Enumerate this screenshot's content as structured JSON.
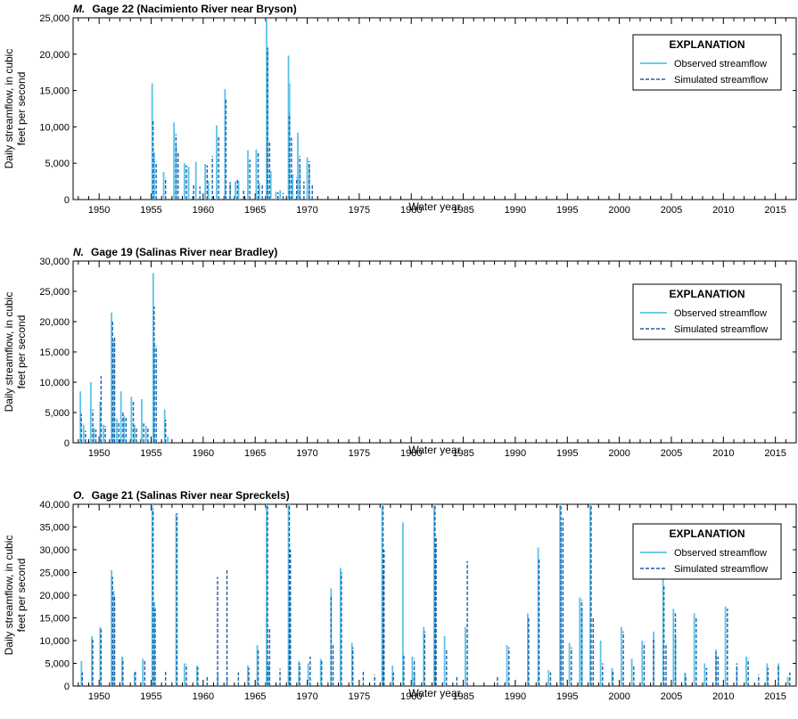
{
  "colors": {
    "observed": "#5BC2E7",
    "simulated": "#1F5FA8",
    "frame": "#000000"
  },
  "chart_data": [
    {
      "type": "line",
      "panel_letter": "M.",
      "title": "Gage 22 (Nacimiento River near Bryson)",
      "xlabel": "Water year",
      "ylabel": [
        "Daily streamflow, in cubic",
        "feet per second"
      ],
      "xlim": [
        1947.5,
        2017
      ],
      "ylim": [
        0,
        25000
      ],
      "xticks": [
        1950,
        1955,
        1960,
        1965,
        1970,
        1975,
        1980,
        1985,
        1990,
        1995,
        2000,
        2005,
        2010,
        2015
      ],
      "yticks": [
        0,
        5000,
        10000,
        15000,
        20000,
        25000
      ],
      "ytick_labels": [
        "0",
        "5,000",
        "10,000",
        "15,000",
        "20,000",
        "25,000"
      ],
      "legend": {
        "title": "EXPLANATION",
        "placement": "top-right",
        "observed": "Observed streamflow",
        "simulated": "Simulated streamflow"
      },
      "series": [
        {
          "name": "Observed streamflow",
          "style": "solid",
          "x": [
            1955.1,
            1955.3,
            1956.2,
            1957.2,
            1957.4,
            1958.2,
            1958.6,
            1959.3,
            1960.2,
            1960.5,
            1961.3,
            1962.1,
            1962.6,
            1963.1,
            1963.4,
            1964.3,
            1965.1,
            1965.4,
            1966.1,
            1966.2,
            1966.5,
            1967.0,
            1967.4,
            1968.2,
            1968.3,
            1968.6,
            1969.1,
            1969.3,
            1970.0,
            1970.2
          ],
          "y": [
            16000,
            6500,
            3800,
            10600,
            7500,
            5000,
            4500,
            5200,
            4900,
            2600,
            10200,
            15200,
            2200,
            2500,
            2600,
            6800,
            6900,
            2300,
            24800,
            21000,
            3900,
            1100,
            1300,
            19800,
            16000,
            3500,
            9200,
            4600,
            5800,
            4800
          ]
        },
        {
          "name": "Simulated streamflow",
          "style": "dashed",
          "x": [
            1955.1,
            1955.4,
            1956.3,
            1957.3,
            1957.5,
            1958.3,
            1959.0,
            1959.6,
            1960.3,
            1960.8,
            1961.4,
            1962.1,
            1962.5,
            1963.2,
            1963.8,
            1964.4,
            1965.2,
            1965.6,
            1966.1,
            1966.3,
            1967.1,
            1967.6,
            1968.2,
            1968.4,
            1968.9,
            1969.2,
            1969.6,
            1970.1,
            1970.4
          ],
          "y": [
            11000,
            5200,
            3000,
            9000,
            6500,
            4700,
            2000,
            1800,
            4700,
            6000,
            8800,
            13800,
            2400,
            2800,
            1500,
            5500,
            6500,
            2000,
            20800,
            8000,
            1000,
            900,
            11800,
            8500,
            3000,
            6000,
            2500,
            5300,
            2000
          ]
        }
      ]
    },
    {
      "type": "line",
      "panel_letter": "N.",
      "title": "Gage 19 (Salinas River near Bradley)",
      "xlabel": "Water year",
      "ylabel": [
        "Daily streamflow, in cubic",
        "feet per second"
      ],
      "xlim": [
        1947.5,
        2017
      ],
      "ylim": [
        0,
        30000
      ],
      "xticks": [
        1950,
        1955,
        1960,
        1965,
        1970,
        1975,
        1980,
        1985,
        1990,
        1995,
        2000,
        2005,
        2010,
        2015
      ],
      "yticks": [
        0,
        5000,
        10000,
        15000,
        20000,
        25000,
        30000
      ],
      "ytick_labels": [
        "0",
        "5,000",
        "10,000",
        "15,000",
        "20,000",
        "25,000",
        "30,000"
      ],
      "legend": {
        "title": "EXPLANATION",
        "placement": "top-right",
        "observed": "Observed streamflow",
        "simulated": "Simulated streamflow"
      },
      "series": [
        {
          "name": "Observed streamflow",
          "style": "solid",
          "x": [
            1948.2,
            1948.5,
            1949.2,
            1949.5,
            1950.1,
            1950.4,
            1951.2,
            1951.4,
            1951.7,
            1952.1,
            1952.4,
            1953.1,
            1953.4,
            1954.1,
            1954.5,
            1955.2,
            1955.3,
            1956.3,
            1956.6
          ],
          "y": [
            8500,
            3000,
            10000,
            2500,
            6800,
            3000,
            21500,
            17000,
            4000,
            8500,
            4500,
            7600,
            3000,
            7200,
            2800,
            28000,
            16600,
            5500,
            1000
          ]
        },
        {
          "name": "Simulated streamflow",
          "style": "dashed",
          "x": [
            1948.2,
            1948.6,
            1949.3,
            1949.6,
            1950.1,
            1950.5,
            1951.2,
            1951.4,
            1951.8,
            1952.2,
            1952.5,
            1953.2,
            1953.5,
            1954.2,
            1954.6,
            1955.2,
            1955.4,
            1956.3
          ],
          "y": [
            4800,
            2000,
            5500,
            2200,
            11000,
            2800,
            20000,
            17500,
            3500,
            5200,
            4200,
            7000,
            2600,
            3200,
            2400,
            22500,
            16000,
            3800
          ]
        }
      ]
    },
    {
      "type": "line",
      "panel_letter": "O.",
      "title": "Gage 21 (Salinas River near Spreckels)",
      "xlabel": "Water year",
      "ylabel": [
        "Daily streamflow, in cubic",
        "feet per second"
      ],
      "xlim": [
        1947.5,
        2017
      ],
      "ylim": [
        0,
        40000
      ],
      "xticks": [
        1950,
        1955,
        1960,
        1965,
        1970,
        1975,
        1980,
        1985,
        1990,
        1995,
        2000,
        2005,
        2010,
        2015
      ],
      "yticks": [
        0,
        5000,
        10000,
        15000,
        20000,
        25000,
        30000,
        35000,
        40000
      ],
      "ytick_labels": [
        "0",
        "5,000",
        "10,000",
        "15,000",
        "20,000",
        "25,000",
        "30,000",
        "35,000",
        "40,000"
      ],
      "legend": {
        "title": "EXPLANATION",
        "placement": "top-right",
        "observed": "Observed streamflow",
        "simulated": "Simulated streamflow"
      },
      "series": [
        {
          "name": "Observed streamflow",
          "style": "solid",
          "x": [
            1948.3,
            1949.3,
            1950.1,
            1951.2,
            1951.4,
            1952.2,
            1953.4,
            1954.2,
            1955.1,
            1955.3,
            1957.4,
            1958.2,
            1959.4,
            1961.4,
            1962.3,
            1964.3,
            1965.2,
            1966.1,
            1966.3,
            1968.2,
            1968.3,
            1969.2,
            1970.1,
            1971.3,
            1972.3,
            1973.2,
            1974.3,
            1977.2,
            1977.3,
            1978.2,
            1979.2,
            1980.1,
            1980.3,
            1981.2,
            1982.2,
            1982.3,
            1983.2,
            1985.2,
            1989.2,
            1991.2,
            1992.2,
            1993.2,
            1994.3,
            1994.4,
            1995.2,
            1996.2,
            1996.4,
            1997.2,
            1998.2,
            1999.3,
            2000.2,
            2001.2,
            2002.2,
            2003.3,
            2004.2,
            2005.2,
            2005.4,
            2006.3,
            2007.2,
            2008.2,
            2009.3,
            2010.2,
            2011.3,
            2012.2,
            2014.2,
            2015.3,
            2016.2
          ],
          "y": [
            5500,
            11000,
            13000,
            25500,
            21000,
            6500,
            3000,
            6000,
            40000,
            18500,
            38000,
            5000,
            4500,
            2500,
            2000,
            4500,
            9000,
            40000,
            5000,
            40000,
            21000,
            5500,
            5000,
            6000,
            21500,
            26000,
            9500,
            40000,
            25000,
            4500,
            36000,
            6500,
            3000,
            13000,
            40000,
            31000,
            11000,
            13000,
            9000,
            16000,
            30500,
            3500,
            40000,
            36000,
            9500,
            19500,
            17000,
            40000,
            10000,
            4000,
            13000,
            6000,
            10000,
            12000,
            23500,
            17000,
            11000,
            3000,
            16000,
            5000,
            8000,
            17500,
            4000,
            6500,
            5000,
            5000,
            2000
          ]
        },
        {
          "name": "Simulated streamflow",
          "style": "dashed",
          "x": [
            1948.3,
            1949.3,
            1950.1,
            1951.2,
            1951.4,
            1952.2,
            1953.4,
            1954.3,
            1955.1,
            1955.3,
            1956.3,
            1957.4,
            1958.3,
            1959.4,
            1960.3,
            1961.3,
            1962.2,
            1963.3,
            1964.3,
            1965.2,
            1966.1,
            1966.3,
            1967.3,
            1968.2,
            1968.3,
            1969.2,
            1970.2,
            1971.3,
            1972.2,
            1972.4,
            1973.2,
            1974.3,
            1975.3,
            1976.4,
            1977.2,
            1977.3,
            1978.2,
            1979.2,
            1980.2,
            1981.2,
            1982.2,
            1982.3,
            1983.3,
            1984.3,
            1985.3,
            1988.2,
            1989.3,
            1991.2,
            1992.2,
            1993.3,
            1994.3,
            1994.5,
            1995.3,
            1996.3,
            1997.2,
            1997.4,
            1998.3,
            1999.3,
            2000.3,
            2001.3,
            2002.3,
            2003.2,
            2004.2,
            2004.4,
            2005.3,
            2006.3,
            2007.3,
            2008.3,
            2009.2,
            2009.4,
            2010.3,
            2011.2,
            2012.3,
            2013.3,
            2014.2,
            2015.2,
            2016.3
          ],
          "y": [
            3000,
            10500,
            12500,
            24000,
            20000,
            6000,
            3500,
            5500,
            39000,
            17000,
            3500,
            38000,
            4800,
            4200,
            2000,
            24000,
            25500,
            3000,
            4000,
            8000,
            40000,
            13000,
            3800,
            40000,
            30000,
            5000,
            6500,
            5500,
            20000,
            9000,
            25000,
            8500,
            3500,
            2500,
            40000,
            30000,
            3000,
            7000,
            6000,
            12000,
            40000,
            33000,
            8000,
            2000,
            27500,
            2000,
            8500,
            15000,
            28000,
            3000,
            40000,
            37000,
            8500,
            19000,
            40000,
            15000,
            5000,
            3500,
            12000,
            4500,
            9500,
            10500,
            22000,
            9000,
            16000,
            2500,
            15000,
            4000,
            7500,
            6500,
            17000,
            5000,
            6000,
            2500,
            4000,
            4500,
            3000
          ]
        }
      ]
    }
  ]
}
